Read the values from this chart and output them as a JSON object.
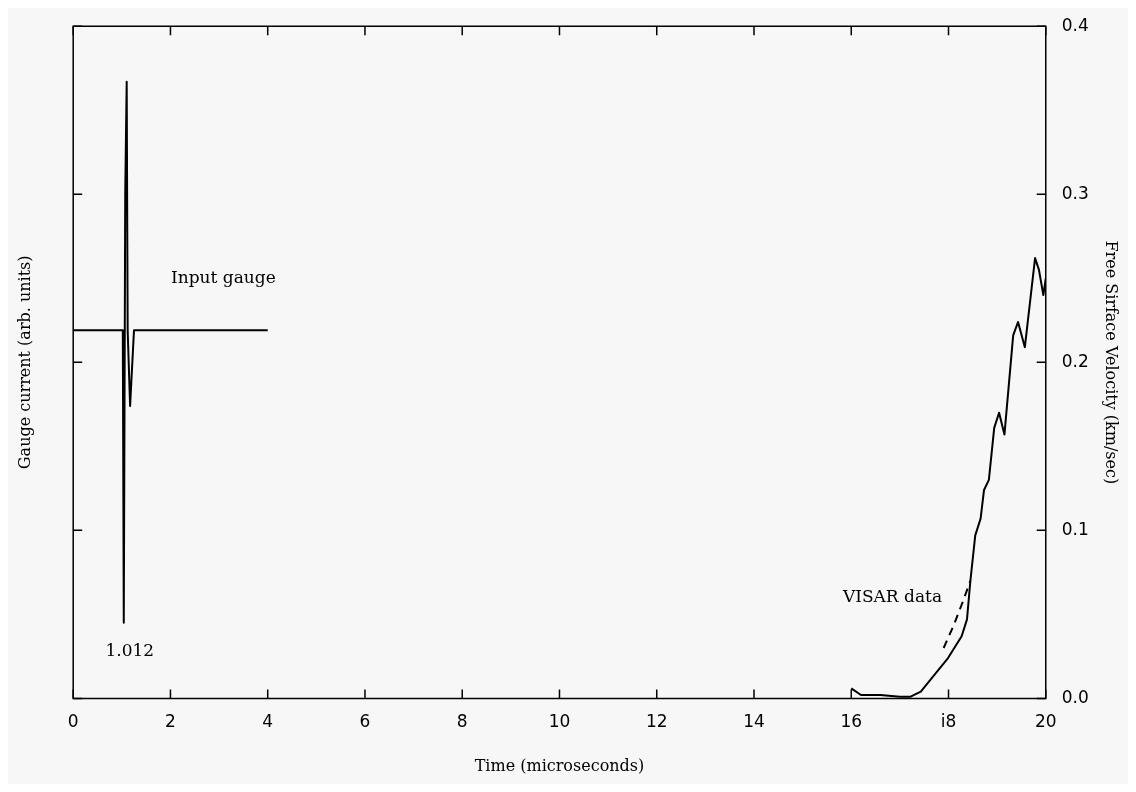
{
  "chart_data": {
    "type": "line",
    "xlabel": "Time (microseconds)",
    "ylabel": "Gauge current (arb. units)",
    "y2label": "Free Sirface Velocity (km/sec)",
    "xlim": [
      0,
      20
    ],
    "xticks": [
      0,
      2,
      4,
      6,
      8,
      10,
      12,
      14,
      16,
      {
        "value": 18,
        "label": "i8"
      },
      20
    ],
    "ylim": [
      0,
      0.4
    ],
    "yticks": [
      {
        "value": 0,
        "label": "0.0"
      },
      0.1,
      0.2,
      0.3,
      0.4
    ],
    "series": [
      {
        "name": "Input gauge",
        "color": "#000000",
        "x": [
          0,
          1.02,
          1.04,
          1.07,
          1.1,
          1.12,
          1.17,
          1.25,
          4.0
        ],
        "values": [
          0.219,
          0.219,
          0.045,
          0.3,
          0.367,
          0.219,
          0.174,
          0.219,
          0.219
        ]
      },
      {
        "name": "VISAR data",
        "color": "#000000",
        "x": [
          16.0,
          16.2,
          16.6,
          17.0,
          17.22,
          17.43,
          17.71,
          17.99,
          18.27,
          18.38,
          18.45,
          18.55,
          18.66,
          18.73,
          18.83,
          18.94,
          19.04,
          19.15,
          19.33,
          19.43,
          19.57,
          19.78,
          19.86,
          19.95,
          20.0
        ],
        "values": [
          0.006,
          0.002,
          0.002,
          0.001,
          0.001,
          0.004,
          0.014,
          0.024,
          0.037,
          0.047,
          0.07,
          0.097,
          0.107,
          0.124,
          0.13,
          0.161,
          0.17,
          0.157,
          0.216,
          0.224,
          0.209,
          0.262,
          0.255,
          0.24,
          0.25
        ]
      },
      {
        "color": "#000000",
        "line_style": "dashed",
        "x": [
          17.9,
          18.1,
          18.3,
          18.45
        ],
        "values": [
          0.03,
          0.043,
          0.058,
          0.07
        ]
      }
    ],
    "annotations": [
      "1.012"
    ],
    "grid": false,
    "legend": false
  }
}
